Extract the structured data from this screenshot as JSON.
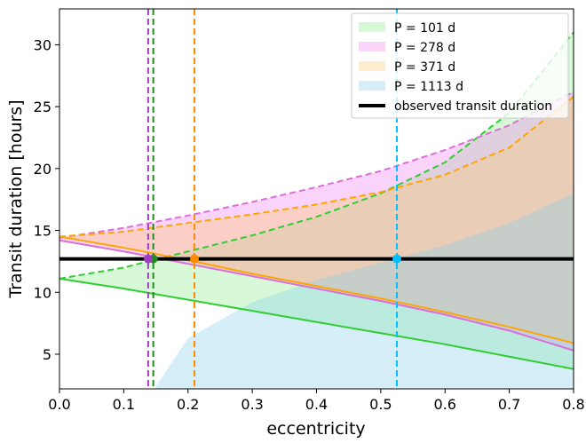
{
  "chart_data": {
    "type": "band",
    "xlabel": "eccentricity",
    "ylabel": "Transit duration [hours]",
    "xlim": [
      0,
      0.8
    ],
    "ylim": [
      2.2,
      32.9
    ],
    "xticks": [
      {
        "value": 0,
        "label": "0.0"
      },
      {
        "value": 0.1,
        "label": "0.1"
      },
      {
        "value": 0.2,
        "label": "0.2"
      },
      {
        "value": 0.3,
        "label": "0.3"
      },
      {
        "value": 0.4,
        "label": "0.4"
      },
      {
        "value": 0.5,
        "label": "0.5"
      },
      {
        "value": 0.6,
        "label": "0.6"
      },
      {
        "value": 0.7,
        "label": "0.7"
      },
      {
        "value": 0.8,
        "label": "0.8"
      }
    ],
    "yticks": [
      5,
      10,
      15,
      20,
      25,
      30
    ],
    "legend": "upper right",
    "observed": {
      "name": "observed transit duration",
      "value": 12.7,
      "color": "#000000"
    },
    "series": [
      {
        "name": "P = 101 d",
        "color": "#90ee90",
        "line_color": "#32cd32",
        "marker_color": "#228b22",
        "x": [
          0,
          0.1,
          0.2,
          0.3,
          0.4,
          0.5,
          0.6,
          0.7,
          0.8
        ],
        "lower": [
          11.1,
          10.3,
          9.4,
          8.5,
          7.6,
          6.7,
          5.8,
          4.8,
          3.8
        ],
        "upper": [
          11.1,
          12.0,
          13.3,
          14.6,
          16.1,
          18.0,
          20.5,
          24.5,
          31.0
        ],
        "crossing": 0.146
      },
      {
        "name": "P = 278 d",
        "color": "#ee82ee",
        "line_color": "#da70d6",
        "marker_color": "#9b3fc0",
        "x": [
          0,
          0.1,
          0.2,
          0.3,
          0.4,
          0.5,
          0.6,
          0.7,
          0.8
        ],
        "lower": [
          14.2,
          13.3,
          12.3,
          11.3,
          10.3,
          9.3,
          8.2,
          6.9,
          5.3
        ],
        "upper": [
          14.4,
          15.2,
          16.2,
          17.3,
          18.5,
          19.8,
          21.5,
          23.5,
          26.2
        ],
        "crossing": 0.138
      },
      {
        "name": "P = 371 d",
        "color": "#ffc86e",
        "line_color": "#ffa500",
        "marker_color": "#ff8c00",
        "x": [
          0,
          0.1,
          0.2,
          0.3,
          0.4,
          0.5,
          0.6,
          0.7,
          0.8
        ],
        "lower": [
          14.5,
          13.6,
          12.6,
          11.5,
          10.5,
          9.5,
          8.4,
          7.2,
          5.9
        ],
        "upper": [
          14.5,
          14.9,
          15.6,
          16.3,
          17.1,
          18.1,
          19.5,
          21.7,
          25.8
        ],
        "crossing": 0.21
      },
      {
        "name": "P = 1113 d",
        "color": "#87ceeb",
        "line_color": "#87ceeb",
        "marker_color": "#00bfff",
        "x": [
          0.15,
          0.2,
          0.3,
          0.4,
          0.5,
          0.6,
          0.7,
          0.8
        ],
        "upper": [
          2.4,
          6.3,
          9.2,
          11.0,
          12.4,
          13.8,
          15.6,
          18.0
        ],
        "crossing": 0.525
      }
    ]
  }
}
